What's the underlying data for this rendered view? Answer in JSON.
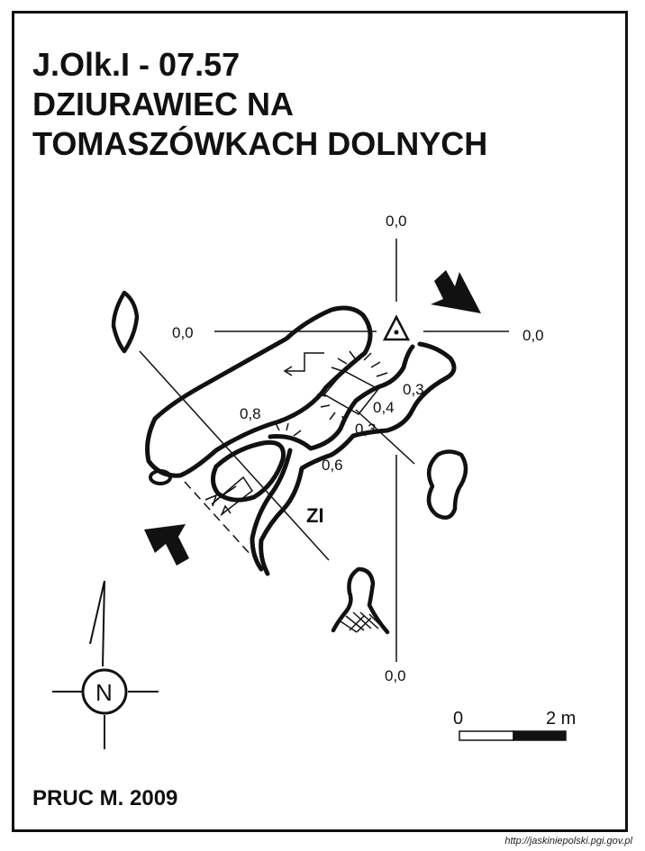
{
  "map": {
    "cave_code": "J.Olk.I - 07.57",
    "cave_name_line1": "DZIURAWIEC NA",
    "cave_name_line2": "TOMASZÓWKACH DOLNYCH",
    "author_year": "PRUC M.  2009",
    "source_url": "http://jaskiniepolski.pgi.gov.pl"
  },
  "datum_labels": {
    "north": "0,0",
    "west": "0,0",
    "east": "0,0",
    "south": "0,0"
  },
  "depth_labels": {
    "a": "0,8",
    "b": "0,3",
    "c": "0,4",
    "d": "0,3",
    "e": "0,6"
  },
  "feature_label": "ZI",
  "scale_bar": {
    "label_start": "0",
    "label_end": "2 m"
  },
  "north_arrow": {
    "letter": "N"
  },
  "colors": {
    "ink": "#111111",
    "background": "#ffffff"
  }
}
